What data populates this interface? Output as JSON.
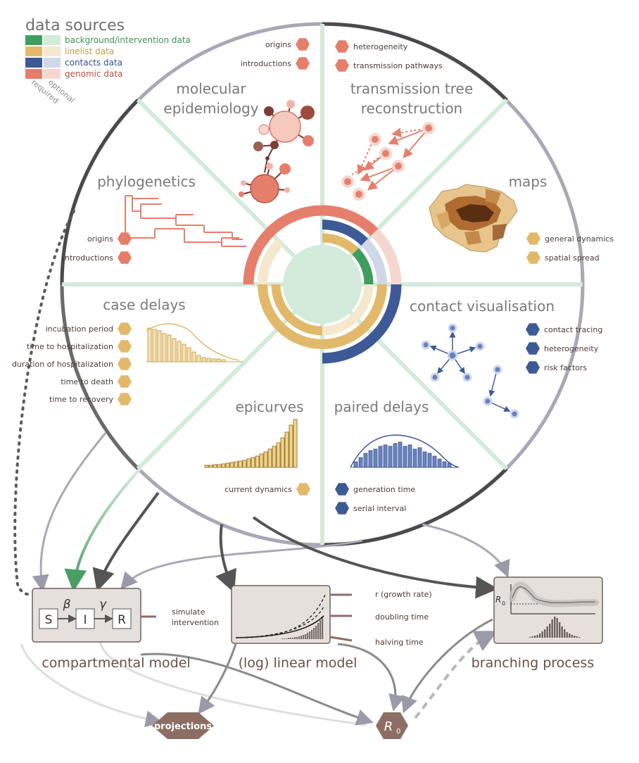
{
  "legend": {
    "title": "data sources",
    "items": [
      {
        "label": "background/intervention data",
        "required_color": "#3f9e5f",
        "optional_color": "#d3ebd9",
        "text_color": "#3f8f55"
      },
      {
        "label": "linelist data",
        "required_color": "#e2b96b",
        "optional_color": "#f5e8cc",
        "text_color": "#c59a45"
      },
      {
        "label": "contacts data",
        "required_color": "#3e5a96",
        "optional_color": "#cfd7e8",
        "text_color": "#34508c"
      },
      {
        "label": "genomic data",
        "required_color": "#e57f6c",
        "optional_color": "#f6d7cf",
        "text_color": "#b7523f"
      }
    ],
    "optional_label": "optional",
    "required_label": "required"
  },
  "sections": {
    "molecular_epidemiology": {
      "title_line1": "molecular",
      "title_line2": "epidemiology",
      "items": [
        "origins",
        "introductions"
      ]
    },
    "transmission_tree": {
      "title_line1": "transmission tree",
      "title_line2": "reconstruction",
      "items": [
        "heterogeneity",
        "transmission pathways"
      ]
    },
    "phylogenetics": {
      "title": "phylogenetics",
      "items": [
        "origins",
        "introductions"
      ]
    },
    "maps": {
      "title": "maps",
      "items": [
        "general dynamics",
        "spatial spread"
      ]
    },
    "case_delays": {
      "title": "case delays",
      "items": [
        "incubation period",
        "time to hospitalization",
        "duration of hospitalization",
        "time to death",
        "time to recovery"
      ]
    },
    "contact_visualisation": {
      "title": "contact visualisation",
      "items": [
        "contact tracing",
        "heterogeneity",
        "risk factors"
      ]
    },
    "epicurves": {
      "title": "epicurves",
      "items": [
        "current dynamics"
      ]
    },
    "paired_delays": {
      "title": "paired delays",
      "items": [
        "generation time",
        "serial interval"
      ]
    }
  },
  "models": {
    "compartmental": {
      "title": "compartmental model",
      "boxes": [
        "S",
        "I",
        "R"
      ],
      "beta": "β",
      "gamma": "γ",
      "output_line1": "simulate",
      "output_line2": "intervention"
    },
    "loglinear": {
      "title": "(log) linear model",
      "outputs": [
        "r (growth rate)",
        "doubling time",
        "halving time"
      ]
    },
    "branching": {
      "title": "branching process",
      "axis_label": "R",
      "axis_sub": "0"
    }
  },
  "outputs": {
    "projections": "projections",
    "r0": "R",
    "r0_sub": "0"
  },
  "colors": {
    "genomic": "#e57f6c",
    "linelist": "#e2b96b",
    "contacts": "#3e5a96",
    "background": "#3f9e5f",
    "divider": "#d3ebd9",
    "model_box": "#e6e0dc",
    "model_box_border": "#6d625d",
    "hexagon_brown": "#8c6e64"
  }
}
